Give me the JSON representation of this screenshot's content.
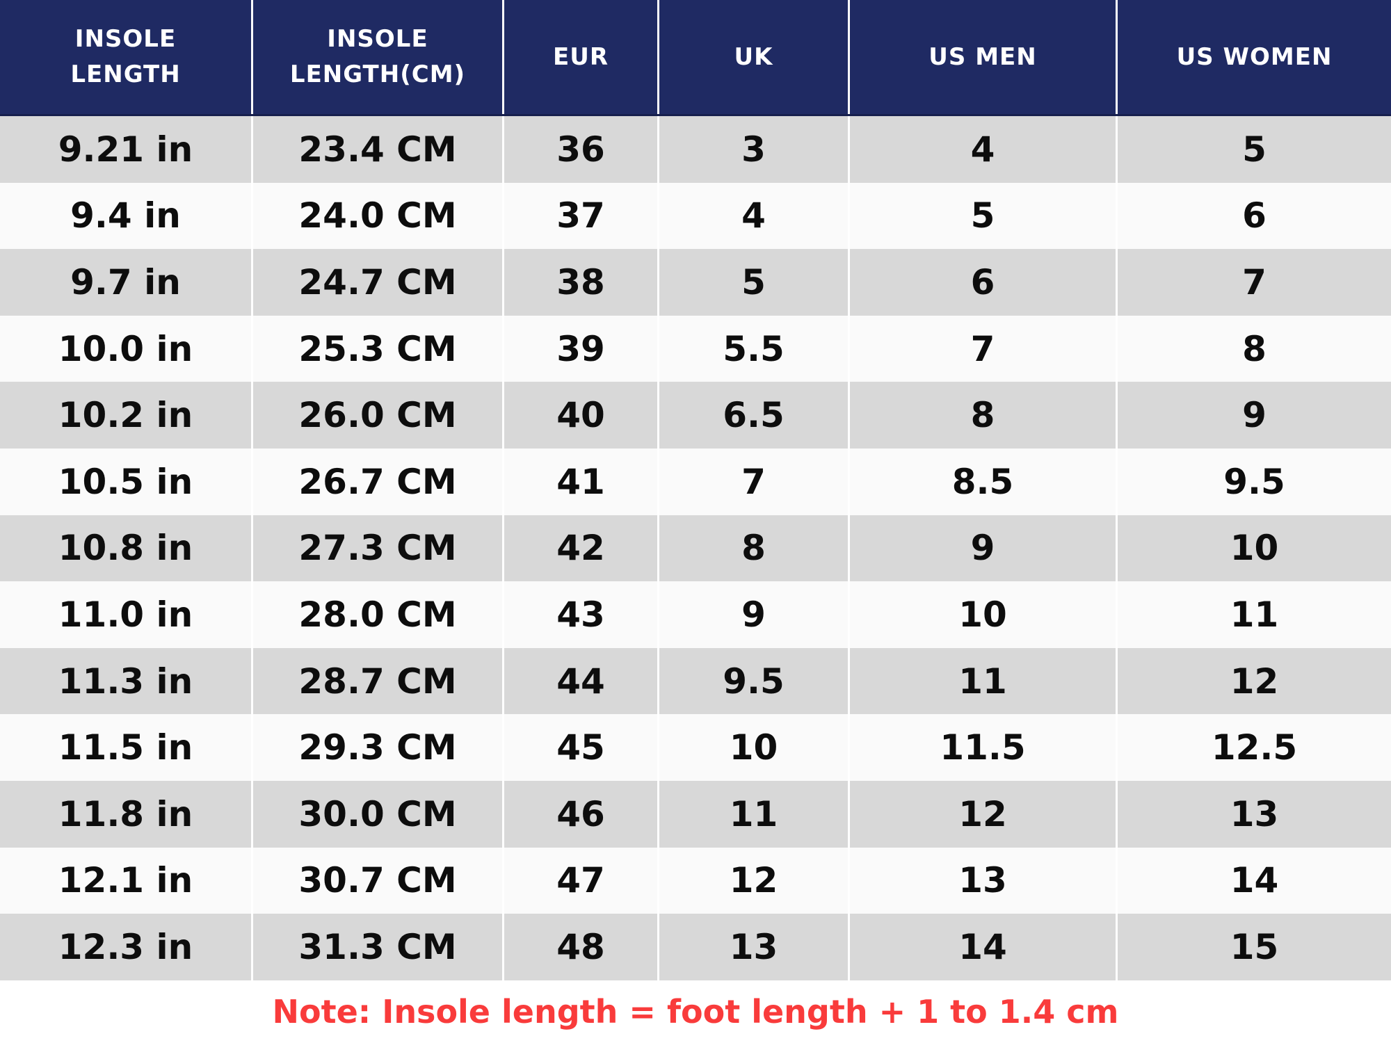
{
  "table": {
    "columns": [
      {
        "key": "insole-length-in",
        "label": "INSOLE\nLENGTH"
      },
      {
        "key": "insole-length-cm",
        "label": "INSOLE\nLENGTH(CM)"
      },
      {
        "key": "eur",
        "label": "EUR"
      },
      {
        "key": "uk",
        "label": "UK"
      },
      {
        "key": "us-men",
        "label": "US MEN"
      },
      {
        "key": "us-women",
        "label": "US WOMEN"
      }
    ],
    "rows": [
      [
        "9.21 in",
        "23.4 CM",
        "36",
        "3",
        "4",
        "5"
      ],
      [
        "9.4 in",
        "24.0 CM",
        "37",
        "4",
        "5",
        "6"
      ],
      [
        "9.7 in",
        "24.7 CM",
        "38",
        "5",
        "6",
        "7"
      ],
      [
        "10.0 in",
        "25.3 CM",
        "39",
        "5.5",
        "7",
        "8"
      ],
      [
        "10.2 in",
        "26.0 CM",
        "40",
        "6.5",
        "8",
        "9"
      ],
      [
        "10.5 in",
        "26.7 CM",
        "41",
        "7",
        "8.5",
        "9.5"
      ],
      [
        "10.8 in",
        "27.3 CM",
        "42",
        "8",
        "9",
        "10"
      ],
      [
        "11.0 in",
        "28.0 CM",
        "43",
        "9",
        "10",
        "11"
      ],
      [
        "11.3 in",
        "28.7 CM",
        "44",
        "9.5",
        "11",
        "12"
      ],
      [
        "11.5 in",
        "29.3 CM",
        "45",
        "10",
        "11.5",
        "12.5"
      ],
      [
        "11.8 in",
        "30.0 CM",
        "46",
        "11",
        "12",
        "13"
      ],
      [
        "12.1 in",
        "30.7 CM",
        "47",
        "12",
        "13",
        "14"
      ],
      [
        "12.3 in",
        "31.3 CM",
        "48",
        "13",
        "14",
        "15"
      ]
    ]
  },
  "note": {
    "text": "Note: Insole length = foot length + 1 to 1.4 cm"
  },
  "colors": {
    "header_bg": "#1f2a63",
    "header_bottom_line": "#161f4d",
    "header_text": "#ffffff",
    "row_gray": "#d8d8d8",
    "row_white": "#fafafa",
    "separator": "#ffffff",
    "body_text": "#0d0d0d",
    "note_red": "#f93b3b",
    "page_bg": "#ffffff"
  }
}
